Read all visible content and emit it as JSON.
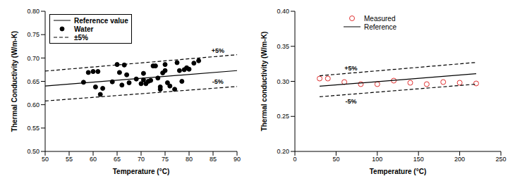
{
  "chart_data": [
    {
      "type": "scatter",
      "x_label": "Temperature (°C)",
      "y_label": "Thermal Conductivity (W/m-K)",
      "xlim": [
        50,
        90
      ],
      "xticks": [
        50,
        55,
        60,
        65,
        70,
        75,
        80,
        85,
        90
      ],
      "ylim": [
        0.5,
        0.8
      ],
      "yticks": [
        {
          "value": 0.5,
          "label": "0.50"
        },
        {
          "value": 0.55,
          "label": "0.55"
        },
        {
          "value": 0.6,
          "label": "0.60"
        },
        {
          "value": 0.65,
          "label": "0.65"
        },
        {
          "value": 0.7,
          "label": "0.70"
        },
        {
          "value": 0.75,
          "label": "0.75"
        },
        {
          "value": 0.8,
          "label": "0.80"
        }
      ],
      "legend": "upper left",
      "series": [
        {
          "name": "Reference value",
          "type": "line",
          "line_style": "solid",
          "color": "#000000",
          "x": [
            50,
            90
          ],
          "values": [
            0.64,
            0.673
          ]
        },
        {
          "name": "Water",
          "type": "scatter",
          "marker": "filled circle",
          "color": "#000000",
          "x": [
            58,
            59,
            60,
            60.5,
            61,
            61.5,
            62,
            64,
            65,
            65.5,
            66,
            66.5,
            67,
            67.5,
            69,
            70,
            70.5,
            70.5,
            71,
            71.5,
            72,
            72.5,
            73,
            73.5,
            74,
            74,
            74.5,
            75,
            75,
            75.5,
            76,
            77,
            77.5,
            78,
            78.5,
            79,
            79.5,
            80,
            81,
            82
          ],
          "values": [
            0.648,
            0.669,
            0.671,
            0.638,
            0.671,
            0.622,
            0.635,
            0.649,
            0.686,
            0.669,
            0.642,
            0.685,
            0.664,
            0.647,
            0.655,
            0.645,
            0.653,
            0.667,
            0.645,
            0.65,
            0.652,
            0.683,
            0.683,
            0.657,
            0.638,
            0.633,
            0.668,
            0.673,
            0.686,
            0.647,
            0.64,
            0.633,
            0.69,
            0.673,
            0.65,
            0.675,
            0.679,
            0.676,
            0.689,
            0.694
          ]
        },
        {
          "name": "±5%",
          "type": "line",
          "line_style": "dashed",
          "color": "#000000",
          "x": [
            50,
            90
          ],
          "values": [
            0.672,
            0.707
          ],
          "lower_values": [
            0.608,
            0.639
          ]
        }
      ],
      "annotations": [
        {
          "text": "+5%",
          "x": 86,
          "y": 0.714
        },
        {
          "text": "-5%",
          "x": 86,
          "y": 0.648
        }
      ]
    },
    {
      "type": "scatter",
      "x_label": "Temperature (°C)",
      "y_label": "Thermal conductivity (W/m-K)",
      "xlim": [
        0,
        250
      ],
      "xticks": [
        0,
        50,
        100,
        150,
        200,
        250
      ],
      "ylim": [
        0.2,
        0.4
      ],
      "yticks": [
        {
          "value": 0.2,
          "label": "0.20"
        },
        {
          "value": 0.25,
          "label": "0.25"
        },
        {
          "value": 0.3,
          "label": "0.30"
        },
        {
          "value": 0.35,
          "label": "0.35"
        },
        {
          "value": 0.4,
          "label": "0.40"
        }
      ],
      "legend": "upper left",
      "series": [
        {
          "name": "Measured",
          "type": "scatter",
          "marker": "open circle",
          "color": "#e03030",
          "x": [
            30,
            40,
            60,
            80,
            100,
            120,
            140,
            160,
            180,
            200,
            220
          ],
          "values": [
            0.304,
            0.304,
            0.299,
            0.296,
            0.296,
            0.301,
            0.298,
            0.296,
            0.299,
            0.298,
            0.297
          ]
        },
        {
          "name": "Reference",
          "type": "line",
          "line_style": "solid",
          "color": "#000000",
          "x": [
            30,
            220
          ],
          "values": [
            0.293,
            0.311
          ]
        }
      ],
      "bands": [
        {
          "line_style": "dashed",
          "color": "#000000",
          "x": [
            30,
            220
          ],
          "upper": [
            0.308,
            0.327
          ],
          "lower": [
            0.278,
            0.296
          ]
        }
      ],
      "annotations": [
        {
          "text": "+5%",
          "x": 68,
          "y": 0.318
        },
        {
          "text": "-5%",
          "x": 68,
          "y": 0.271
        }
      ]
    }
  ]
}
